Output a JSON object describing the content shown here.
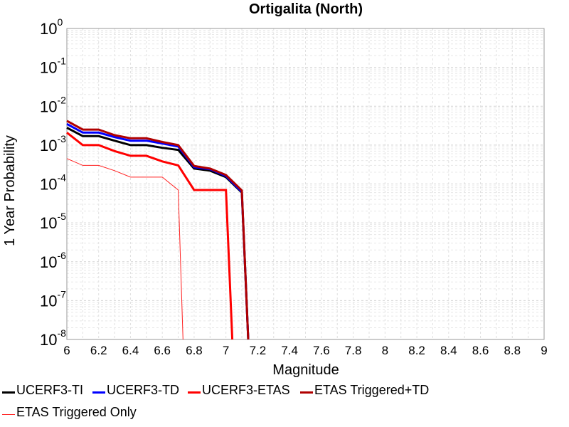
{
  "chart_data": {
    "type": "line",
    "title": "Ortigalita (North)",
    "xlabel": "Magnitude",
    "ylabel": "1 Year Probability",
    "xlim": [
      6,
      9
    ],
    "ylim": [
      1e-08,
      1
    ],
    "yscale": "log",
    "grid": true,
    "legend_placement": "bottom",
    "x_ticks": [
      "6",
      "6.2",
      "6.4",
      "6.6",
      "6.8",
      "7",
      "7.2",
      "7.4",
      "7.6",
      "7.8",
      "8",
      "8.2",
      "8.4",
      "8.6",
      "8.8",
      "9"
    ],
    "y_ticks": [
      {
        "base": "10",
        "exp": "0"
      },
      {
        "base": "10",
        "exp": "-1"
      },
      {
        "base": "10",
        "exp": "-2"
      },
      {
        "base": "10",
        "exp": "-3"
      },
      {
        "base": "10",
        "exp": "-4"
      },
      {
        "base": "10",
        "exp": "-5"
      },
      {
        "base": "10",
        "exp": "-6"
      },
      {
        "base": "10",
        "exp": "-7"
      },
      {
        "base": "10",
        "exp": "-8"
      }
    ],
    "series": [
      {
        "name": "ETAS Triggered Only",
        "color": "#ff2020",
        "width": 1,
        "points": [
          [
            6.0,
            0.00045
          ],
          [
            6.1,
            0.0003
          ],
          [
            6.2,
            0.0003
          ],
          [
            6.3,
            0.00022
          ],
          [
            6.4,
            0.00015
          ],
          [
            6.5,
            0.00015
          ],
          [
            6.6,
            0.00015
          ],
          [
            6.7,
            7e-05
          ],
          [
            6.73,
            1e-08
          ]
        ]
      },
      {
        "name": "UCERF3-ETAS",
        "color": "#ff0000",
        "width": 3,
        "points": [
          [
            6.0,
            0.0021
          ],
          [
            6.1,
            0.001
          ],
          [
            6.2,
            0.001
          ],
          [
            6.3,
            0.0007
          ],
          [
            6.4,
            0.00053
          ],
          [
            6.5,
            0.00053
          ],
          [
            6.6,
            0.00038
          ],
          [
            6.7,
            0.0003
          ],
          [
            6.8,
            7e-05
          ],
          [
            6.9,
            7e-05
          ],
          [
            7.0,
            7e-05
          ],
          [
            7.04,
            1e-08
          ]
        ]
      },
      {
        "name": "UCERF3-TI",
        "color": "#000000",
        "width": 3,
        "points": [
          [
            6.0,
            0.0028
          ],
          [
            6.1,
            0.0017
          ],
          [
            6.2,
            0.0017
          ],
          [
            6.3,
            0.0013
          ],
          [
            6.4,
            0.001
          ],
          [
            6.5,
            0.001
          ],
          [
            6.6,
            0.00085
          ],
          [
            6.7,
            0.00075
          ],
          [
            6.8,
            0.00025
          ],
          [
            6.9,
            0.00022
          ],
          [
            7.0,
            0.00015
          ],
          [
            7.1,
            6e-05
          ],
          [
            7.14,
            1e-08
          ]
        ]
      },
      {
        "name": "UCERF3-TD",
        "color": "#0000ff",
        "width": 3,
        "points": [
          [
            6.0,
            0.0035
          ],
          [
            6.1,
            0.0021
          ],
          [
            6.2,
            0.0021
          ],
          [
            6.3,
            0.0016
          ],
          [
            6.4,
            0.0013
          ],
          [
            6.5,
            0.0013
          ],
          [
            6.6,
            0.0011
          ],
          [
            6.7,
            0.00092
          ],
          [
            6.8,
            0.00027
          ],
          [
            6.9,
            0.00024
          ],
          [
            7.0,
            0.00016
          ],
          [
            7.1,
            6.3e-05
          ],
          [
            7.14,
            1e-08
          ]
        ]
      },
      {
        "name": "ETAS Triggered+TD",
        "color": "#b00000",
        "width": 3,
        "points": [
          [
            6.0,
            0.0042
          ],
          [
            6.1,
            0.0025
          ],
          [
            6.2,
            0.0025
          ],
          [
            6.3,
            0.0018
          ],
          [
            6.4,
            0.0015
          ],
          [
            6.5,
            0.0015
          ],
          [
            6.6,
            0.0012
          ],
          [
            6.7,
            0.001
          ],
          [
            6.8,
            0.00029
          ],
          [
            6.9,
            0.00025
          ],
          [
            7.0,
            0.00017
          ],
          [
            7.1,
            6.8e-05
          ],
          [
            7.14,
            1e-08
          ]
        ]
      }
    ]
  },
  "legend": [
    {
      "label": "UCERF3-TI",
      "color": "#000000",
      "width": 3
    },
    {
      "label": "UCERF3-TD",
      "color": "#0000ff",
      "width": 3
    },
    {
      "label": "UCERF3-ETAS",
      "color": "#ff0000",
      "width": 3
    },
    {
      "label": "ETAS Triggered+TD",
      "color": "#b00000",
      "width": 3
    },
    {
      "label": "ETAS Triggered Only",
      "color": "#ff2020",
      "width": 1
    }
  ]
}
